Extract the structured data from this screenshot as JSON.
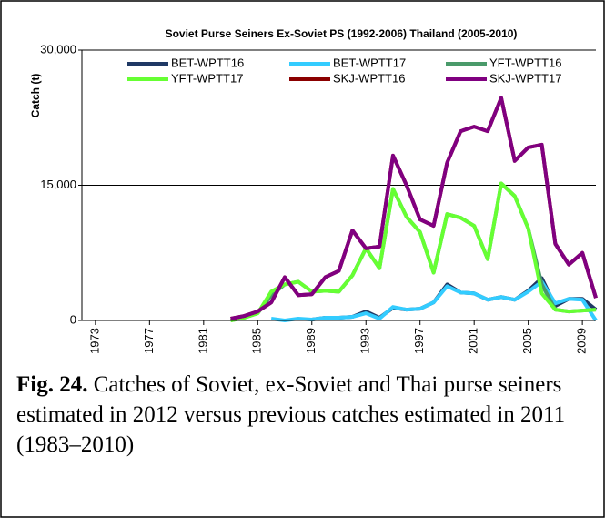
{
  "chart_data": {
    "type": "line",
    "title": "Soviet Purse Seiners Ex-Soviet  PS (1992-2006) Thailand (2005-2010)",
    "y_label": "Catch (t)",
    "x": [
      1983,
      1984,
      1985,
      1986,
      1987,
      1988,
      1989,
      1990,
      1991,
      1992,
      1993,
      1994,
      1995,
      1996,
      1997,
      1998,
      1999,
      2000,
      2001,
      2002,
      2003,
      2004,
      2005,
      2006,
      2007,
      2008,
      2009,
      2010
    ],
    "series": [
      {
        "name": "BET-WPTT16",
        "color": "#1f3864",
        "values": [
          null,
          null,
          null,
          null,
          null,
          null,
          100,
          300,
          300,
          400,
          1000,
          300,
          1400,
          1200,
          1300,
          2000,
          4000,
          3100,
          3000,
          2300,
          2600,
          2300,
          3300,
          4700,
          1600,
          2400,
          2400,
          1200
        ]
      },
      {
        "name": "BET-WPTT17",
        "color": "#33ccff",
        "values": [
          null,
          null,
          null,
          200,
          0,
          200,
          100,
          300,
          300,
          400,
          800,
          200,
          1500,
          1200,
          1300,
          2000,
          3800,
          3100,
          3000,
          2300,
          2600,
          2300,
          3200,
          4300,
          1900,
          2400,
          2300,
          0
        ]
      },
      {
        "name": "YFT-WPTT16",
        "color": "#4a9a6a",
        "values": [
          0,
          300,
          800,
          2800,
          4000,
          4300,
          3200,
          3300,
          3200,
          5000,
          8000,
          5800,
          14600,
          11500,
          9800,
          5300,
          11800,
          11400,
          10500,
          6800,
          15200,
          13800,
          10200,
          4000,
          1200,
          1000,
          1100,
          1200
        ]
      },
      {
        "name": "YFT-WPTT17",
        "color": "#66ff33",
        "values": [
          0,
          300,
          800,
          3200,
          4000,
          4300,
          3200,
          3300,
          3200,
          5000,
          8000,
          5800,
          14600,
          11500,
          9800,
          5300,
          11800,
          11400,
          10500,
          6800,
          15200,
          13800,
          10200,
          3000,
          1200,
          1000,
          1100,
          1200
        ]
      },
      {
        "name": "SKJ-WPTT16",
        "color": "#8b0000",
        "values": [
          200,
          500,
          1000,
          2000,
          4800,
          2800,
          2900,
          4800,
          5500,
          10000,
          8000,
          8200,
          18300,
          15000,
          11200,
          10500,
          17500,
          21000,
          21500,
          21000,
          24700,
          17700,
          19200,
          19500,
          8500,
          6200,
          7500,
          2500
        ]
      },
      {
        "name": "SKJ-WPTT17",
        "color": "#800080",
        "values": [
          200,
          500,
          1000,
          2000,
          4800,
          2800,
          2900,
          4800,
          5500,
          10000,
          8000,
          8200,
          18300,
          15000,
          11200,
          10500,
          17500,
          21000,
          21500,
          21000,
          24700,
          17700,
          19200,
          19500,
          8500,
          6200,
          7500,
          2500
        ]
      }
    ],
    "xlim": [
      1972,
      2010
    ],
    "xticks": [
      1973,
      1977,
      1981,
      1985,
      1989,
      1993,
      1997,
      2001,
      2005,
      2009
    ],
    "ylim": [
      0,
      30000
    ],
    "yticks": [
      0,
      {
        "value": 15000,
        "label": "15,000"
      },
      {
        "value": 30000,
        "label": "30,000"
      }
    ],
    "grid": true,
    "legend": "top"
  },
  "caption": {
    "label": "Fig. 24.",
    "text": "Catches of Soviet, ex-Soviet and Thai purse seiners estimated in 2012 versus previous catches estimated in 2011 (1983–2010)"
  }
}
